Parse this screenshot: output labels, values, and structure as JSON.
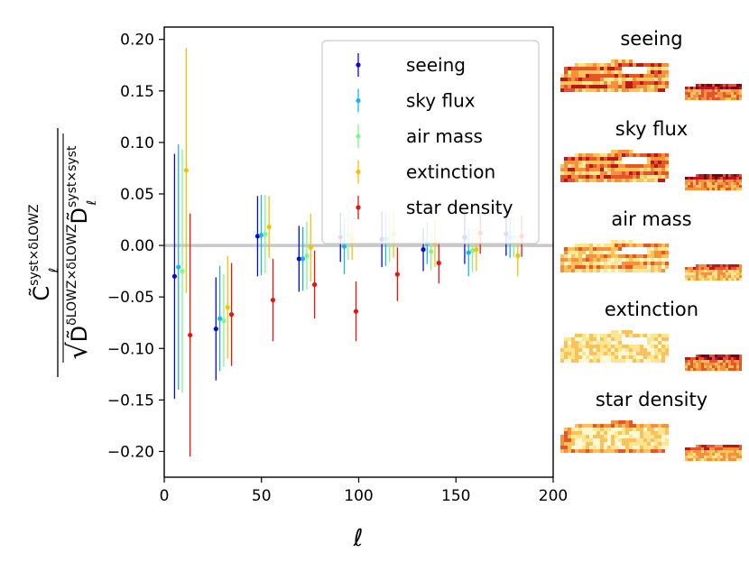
{
  "chart_data": {
    "type": "scatter",
    "subtype": "errorbar",
    "title": "",
    "xlabel": "ℓ",
    "ylabel_parts": {
      "numerator": "C̃",
      "numerator_sup": "syst×δLOWZ",
      "numerator_sub": "ℓ",
      "denominator_d1": "D̃",
      "denominator_d1_sup": "δLOWZ×δLOWZ",
      "denominator_d2": "D̃",
      "denominator_d2_sup": "syst×syst",
      "denominator_sub": "ℓ"
    },
    "xlim": [
      0,
      200
    ],
    "ylim": [
      -0.225,
      0.212
    ],
    "xticks": [
      0,
      50,
      100,
      150,
      200
    ],
    "xtick_labels": [
      "0",
      "50",
      "100",
      "150",
      "200"
    ],
    "yticks": [
      -0.2,
      -0.15,
      -0.1,
      -0.05,
      0.0,
      0.05,
      0.1,
      0.15,
      0.2
    ],
    "ytick_labels": [
      "−0.20",
      "−0.15",
      "−0.10",
      "−0.05",
      "0.00",
      "0.05",
      "0.10",
      "0.15",
      "0.20"
    ],
    "grid": false,
    "reference_line_y": 0.0,
    "legend_position": "top-right",
    "series": [
      {
        "name": "seeing",
        "color": "#0a0ad8",
        "x": [
          5.3,
          26.6,
          48.0,
          69.3,
          90.6,
          111.9,
          133.2,
          154.5,
          175.8
        ],
        "y": [
          -0.03,
          -0.081,
          0.009,
          -0.013,
          0.008,
          0.006,
          -0.004,
          0.008,
          0.011
        ],
        "yerr": [
          0.119,
          0.05,
          0.039,
          0.032,
          0.024,
          0.027,
          0.021,
          0.026,
          0.021
        ]
      },
      {
        "name": "sky flux",
        "color": "#16b6f2",
        "x": [
          7.3,
          28.6,
          49.9,
          71.3,
          92.6,
          113.9,
          135.2,
          156.5,
          177.8
        ],
        "y": [
          -0.021,
          -0.071,
          0.01,
          -0.013,
          -0.001,
          0.006,
          0.002,
          -0.007,
          0.008
        ],
        "yerr": [
          0.119,
          0.051,
          0.039,
          0.031,
          0.027,
          0.026,
          0.02,
          0.023,
          0.02
        ]
      },
      {
        "name": "air mass",
        "color": "#80f58a",
        "x": [
          9.3,
          30.6,
          51.9,
          73.3,
          94.6,
          115.9,
          137.2,
          158.5,
          179.8
        ],
        "y": [
          -0.025,
          -0.073,
          0.011,
          -0.01,
          0.01,
          0.008,
          -0.006,
          -0.005,
          0.008
        ],
        "yerr": [
          0.118,
          0.045,
          0.038,
          0.033,
          0.024,
          0.024,
          0.018,
          0.021,
          0.019
        ]
      },
      {
        "name": "extinction",
        "color": "#f5c200",
        "x": [
          11.3,
          32.6,
          53.9,
          75.3,
          96.6,
          117.9,
          139.2,
          160.5,
          181.8
        ],
        "y": [
          0.073,
          -0.06,
          0.018,
          -0.002,
          0.006,
          0.011,
          0.002,
          -0.004,
          -0.01
        ],
        "yerr": [
          0.119,
          0.05,
          0.03,
          0.033,
          0.02,
          0.023,
          0.023,
          0.021,
          0.02
        ]
      },
      {
        "name": "star density",
        "color": "#e8140e",
        "x": [
          13.3,
          34.6,
          55.9,
          77.3,
          98.6,
          119.9,
          141.2,
          162.5,
          183.8
        ],
        "y": [
          -0.087,
          -0.067,
          -0.053,
          -0.038,
          -0.064,
          -0.028,
          -0.017,
          0.012,
          0.009
        ],
        "yerr": [
          0.118,
          0.05,
          0.04,
          0.033,
          0.029,
          0.026,
          0.02,
          0.02,
          0.02
        ]
      }
    ]
  },
  "side_maps": {
    "palette": [
      "#fff7d6",
      "#fde68f",
      "#fbc25a",
      "#f5903c",
      "#e4552a",
      "#b8181e",
      "#7a0016"
    ],
    "items": [
      {
        "title": "seeing",
        "main_bias": 3,
        "cut_bias": 4,
        "pattern": "stripes"
      },
      {
        "title": "sky flux",
        "main_bias": 3,
        "cut_bias": 4,
        "pattern": "stripes"
      },
      {
        "title": "air mass",
        "main_bias": 2,
        "cut_bias": 3,
        "pattern": "stripes"
      },
      {
        "title": "extinction",
        "main_bias": 1,
        "cut_bias": 4,
        "pattern": "patchy"
      },
      {
        "title": "star density",
        "main_bias": 1,
        "cut_bias": 3,
        "pattern": "speckle"
      }
    ]
  }
}
